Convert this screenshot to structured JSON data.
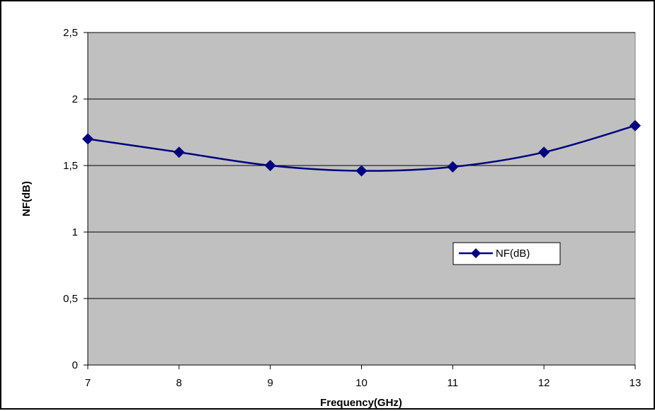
{
  "chart_data": {
    "type": "line",
    "title": "",
    "xlabel": "Frequency(GHz)",
    "ylabel": "NF(dB)",
    "xlim": [
      7,
      13
    ],
    "ylim": [
      0,
      2.5
    ],
    "x_ticks": [
      7,
      8,
      9,
      10,
      11,
      12,
      13
    ],
    "x_tick_labels": [
      "7",
      "8",
      "9",
      "10",
      "11",
      "12",
      "13"
    ],
    "y_ticks": [
      0,
      0.5,
      1,
      1.5,
      2,
      2.5
    ],
    "y_tick_labels": [
      "0",
      "0,5",
      "1",
      "1,5",
      "2",
      "2,5"
    ],
    "grid": "horizontal",
    "legend_position": "right",
    "colors": {
      "plot_background": "#c0c0c0",
      "series": "#000080",
      "gridline": "#000000"
    },
    "series": [
      {
        "name": "NF(dB)",
        "marker": "diamond",
        "x": [
          7,
          8,
          9,
          10,
          11,
          12,
          13
        ],
        "y": [
          1.7,
          1.6,
          1.5,
          1.46,
          1.49,
          1.6,
          1.8
        ]
      }
    ]
  }
}
